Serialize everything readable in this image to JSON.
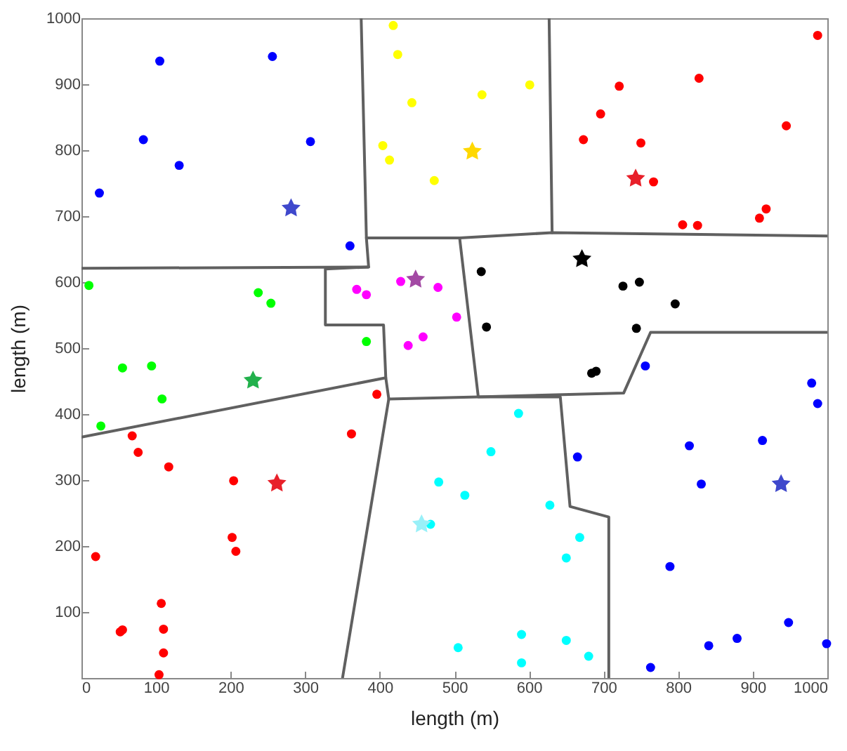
{
  "chart_data": {
    "type": "scatter",
    "xlabel": "length (m)",
    "ylabel": "length (m)",
    "xlim": [
      0,
      1000
    ],
    "ylim": [
      0,
      1000
    ],
    "xticks": [
      0,
      100,
      200,
      300,
      400,
      500,
      600,
      700,
      800,
      900,
      1000
    ],
    "yticks": [
      {
        "value": 0,
        "label": null
      },
      100,
      200,
      300,
      400,
      500,
      600,
      700,
      800,
      900,
      1000
    ],
    "grid": false,
    "series": [
      {
        "type": "line",
        "color": "#606060",
        "x": [
          375,
          382,
          385,
          0
        ],
        "values": [
          1000,
          667,
          623,
          621
        ]
      },
      {
        "type": "line",
        "color": "#606060",
        "x": [
          385,
          327,
          327,
          405,
          408,
          412,
          350
        ],
        "values": [
          623,
          620,
          535,
          535,
          455,
          423,
          0
        ]
      },
      {
        "type": "line",
        "color": "#606060",
        "x": [
          0,
          408
        ],
        "values": [
          365,
          455
        ]
      },
      {
        "type": "line",
        "color": "#606060",
        "x": [
          382,
          507,
          631,
          1000
        ],
        "values": [
          667,
          667,
          675,
          670
        ]
      },
      {
        "type": "line",
        "color": "#606060",
        "x": [
          627,
          631
        ],
        "values": [
          1000,
          675
        ]
      },
      {
        "type": "line",
        "color": "#606060",
        "x": [
          507,
          532,
          727,
          763,
          1000
        ],
        "values": [
          667,
          426,
          432,
          524,
          524
        ]
      },
      {
        "type": "line",
        "color": "#606060",
        "x": [
          412,
          532,
          642,
          655,
          707,
          707
        ],
        "values": [
          423,
          426,
          426,
          260,
          244,
          0
        ]
      },
      {
        "marker": "circle",
        "color": "#0000ff",
        "x": [
          105,
          256,
          83,
          131,
          307,
          24,
          360,
          756,
          979,
          987,
          815,
          913,
          665,
          831,
          789,
          948,
          879,
          841,
          999,
          763
        ],
        "values": [
          935,
          942,
          816,
          777,
          813,
          735,
          655,
          473,
          447,
          416,
          352,
          360,
          335,
          294,
          169,
          84,
          60,
          49,
          52,
          16
        ]
      },
      {
        "marker": "circle",
        "color": "#ffff00",
        "x": [
          418,
          424,
          443,
          404,
          413,
          473,
          537,
          601
        ],
        "values": [
          989,
          945,
          872,
          807,
          785,
          754,
          884,
          899
        ]
      },
      {
        "marker": "circle",
        "color": "#ff0000",
        "x": [
          987,
          828,
          721,
          696,
          945,
          673,
          750,
          767,
          918,
          909,
          806,
          826,
          396,
          68,
          362,
          76,
          117,
          204,
          202,
          207,
          19,
          107,
          52,
          55,
          110,
          110,
          104
        ],
        "values": [
          974,
          909,
          897,
          855,
          837,
          816,
          811,
          752,
          711,
          697,
          687,
          686,
          430,
          367,
          370,
          342,
          320,
          299,
          213,
          192,
          184,
          113,
          70,
          73,
          74,
          38,
          5
        ]
      },
      {
        "marker": "circle",
        "color": "#ff00ff",
        "x": [
          369,
          382,
          428,
          478,
          503,
          458,
          438
        ],
        "values": [
          589,
          581,
          601,
          592,
          547,
          517,
          504
        ]
      },
      {
        "marker": "circle",
        "color": "#00ff00",
        "x": [
          10,
          237,
          254,
          382,
          55,
          94,
          108,
          26
        ],
        "values": [
          595,
          584,
          568,
          510,
          470,
          473,
          423,
          382
        ]
      },
      {
        "marker": "circle",
        "color": "#000000",
        "x": [
          536,
          726,
          748,
          796,
          543,
          744,
          684,
          690
        ],
        "values": [
          616,
          594,
          600,
          567,
          532,
          530,
          462,
          465
        ]
      },
      {
        "marker": "circle",
        "color": "#00ffff",
        "x": [
          479,
          468,
          505,
          586,
          549,
          514,
          628,
          668,
          650,
          590,
          650,
          590,
          680
        ],
        "values": [
          297,
          233,
          46,
          401,
          343,
          277,
          262,
          213,
          182,
          66,
          57,
          23,
          33
        ]
      },
      {
        "marker": "star",
        "color": "#3f48cc",
        "x": [
          281
        ],
        "values": [
          712
        ]
      },
      {
        "marker": "star",
        "color": "#ffd800",
        "x": [
          524
        ],
        "values": [
          798
        ]
      },
      {
        "marker": "star",
        "color": "#e8202a",
        "x": [
          743,
          262
        ],
        "values": [
          757,
          295
        ]
      },
      {
        "marker": "star",
        "color": "#a349a4",
        "x": [
          448
        ],
        "values": [
          604
        ]
      },
      {
        "marker": "star",
        "color": "#22b14c",
        "x": [
          230
        ],
        "values": [
          451
        ]
      },
      {
        "marker": "star",
        "color": "#000000",
        "x": [
          671
        ],
        "values": [
          635
        ]
      },
      {
        "marker": "star",
        "color": "#99f0f8",
        "x": [
          456
        ],
        "values": [
          233
        ]
      },
      {
        "marker": "star",
        "color": "#3f48cc",
        "x": [
          938
        ],
        "values": [
          294
        ]
      }
    ]
  }
}
